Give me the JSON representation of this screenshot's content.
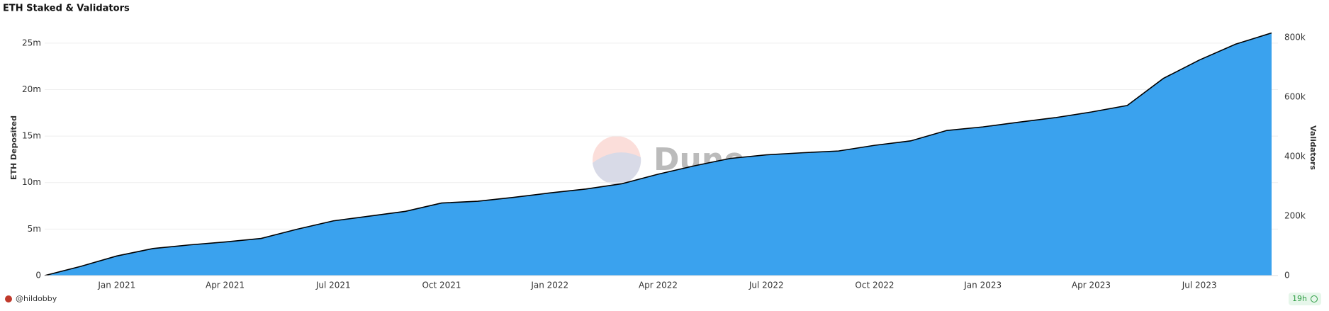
{
  "chart_data": {
    "type": "area",
    "title": "ETH Staked & Validators",
    "x": [
      "2020-11",
      "2020-12",
      "2021-01",
      "2021-02",
      "2021-03",
      "2021-04",
      "2021-05",
      "2021-06",
      "2021-07",
      "2021-08",
      "2021-09",
      "2021-10",
      "2021-11",
      "2021-12",
      "2022-01",
      "2022-02",
      "2022-03",
      "2022-04",
      "2022-05",
      "2022-06",
      "2022-07",
      "2022-08",
      "2022-09",
      "2022-10",
      "2022-11",
      "2022-12",
      "2023-01",
      "2023-02",
      "2023-03",
      "2023-04",
      "2023-05",
      "2023-06",
      "2023-07",
      "2023-08",
      "2023-09"
    ],
    "xlim": [
      "2020-11",
      "2023-09"
    ],
    "xticks": [
      {
        "value": "2021-01",
        "label": "Jan 2021"
      },
      {
        "value": "2021-04",
        "label": "Apr 2021"
      },
      {
        "value": "2021-07",
        "label": "Jul 2021"
      },
      {
        "value": "2021-10",
        "label": "Oct 2021"
      },
      {
        "value": "2022-01",
        "label": "Jan 2022"
      },
      {
        "value": "2022-04",
        "label": "Apr 2022"
      },
      {
        "value": "2022-07",
        "label": "Jul 2022"
      },
      {
        "value": "2022-10",
        "label": "Oct 2022"
      },
      {
        "value": "2023-01",
        "label": "Jan 2023"
      },
      {
        "value": "2023-04",
        "label": "Apr 2023"
      },
      {
        "value": "2023-07",
        "label": "Jul 2023"
      }
    ],
    "ylabel": "ETH Deposited",
    "y2label": "Validators",
    "ylim": [
      0,
      27500000
    ],
    "yticks": [
      0,
      {
        "value": 5000000,
        "label": "5m"
      },
      {
        "value": 10000000,
        "label": "10m"
      },
      {
        "value": 15000000,
        "label": "15m"
      },
      {
        "value": 20000000,
        "label": "20m"
      },
      {
        "value": 25000000,
        "label": "25m"
      }
    ],
    "y2lim": [
      0,
      860000
    ],
    "y2ticks": [
      0,
      {
        "value": 200000,
        "label": "200k"
      },
      {
        "value": 400000,
        "label": "400k"
      },
      {
        "value": 600000,
        "label": "600k"
      },
      {
        "value": 800000,
        "label": "800k"
      }
    ],
    "grid": true,
    "series": [
      {
        "name": "ETH Deposited",
        "color": "#3aa2ee",
        "values": [
          0,
          1000000,
          2100000,
          2900000,
          3300000,
          3600000,
          4000000,
          5000000,
          5900000,
          6400000,
          6900000,
          7800000,
          8000000,
          8400000,
          8900000,
          9300000,
          9900000,
          10900000,
          11800000,
          12600000,
          13000000,
          13200000,
          13400000,
          14000000,
          14500000,
          15600000,
          16000000,
          16500000,
          17000000,
          17600000,
          18300000,
          21200000,
          23200000,
          24900000,
          26100000
        ]
      },
      {
        "name": "Validators",
        "color": "#000000",
        "axis": "y2",
        "values": [
          0,
          31000,
          66000,
          91000,
          103000,
          113000,
          125000,
          156000,
          184000,
          200000,
          216000,
          244000,
          250000,
          263000,
          278000,
          291000,
          309000,
          341000,
          369000,
          394000,
          406000,
          413000,
          419000,
          438000,
          453000,
          488000,
          500000,
          516000,
          531000,
          550000,
          572000,
          663000,
          725000,
          778000,
          816000
        ]
      }
    ],
    "watermark": "Dune",
    "author": "@hildobby",
    "updated": "19h"
  }
}
